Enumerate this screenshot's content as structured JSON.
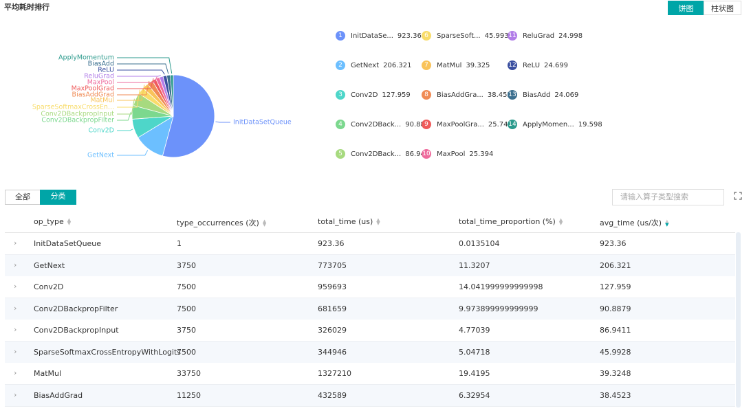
{
  "title": "平均耗时排行",
  "view_toggle": [
    "饼图",
    "柱状图"
  ],
  "pie": {
    "type": "pie",
    "slices": [
      {
        "rank": 1,
        "label": "InitDataSetQueue",
        "legend_label": "InitDataSe...",
        "value": 923.36,
        "value_label": "923.360",
        "color": "#6c92fa"
      },
      {
        "rank": 2,
        "label": "GetNext",
        "legend_label": "GetNext",
        "value": 206.321,
        "color": "#6cbfff"
      },
      {
        "rank": 3,
        "label": "Conv2D",
        "legend_label": "Conv2D",
        "value": 127.959,
        "color": "#4ed6c9"
      },
      {
        "rank": 4,
        "label": "Conv2DBackpropFilter",
        "legend_label": "Conv2DBack...",
        "value": 90.888,
        "color": "#7cd88e"
      },
      {
        "rank": 5,
        "label": "Conv2DBackpropInput",
        "legend_label": "Conv2DBack...",
        "value": 86.941,
        "color": "#a7da7f"
      },
      {
        "rank": 6,
        "label": "SparseSoftmaxCrossEn...",
        "legend_label": "SparseSoft...",
        "value": 45.993,
        "color": "#f8dc6a"
      },
      {
        "rank": 7,
        "label": "MatMul",
        "legend_label": "MatMul",
        "value": 39.325,
        "color": "#f9c35a"
      },
      {
        "rank": 8,
        "label": "BiasAddGrad",
        "legend_label": "BiasAddGra...",
        "value": 38.452,
        "color": "#f08b55"
      },
      {
        "rank": 9,
        "label": "MaxPoolGrad",
        "legend_label": "MaxPoolGra...",
        "value": 25.74,
        "value_label": "25.740",
        "color": "#ef5b5b"
      },
      {
        "rank": 10,
        "label": "MaxPool",
        "legend_label": "MaxPool",
        "value": 25.394,
        "color": "#ee6a9c"
      },
      {
        "rank": 11,
        "label": "ReluGrad",
        "legend_label": "ReluGrad",
        "value": 24.998,
        "color": "#b27ee8"
      },
      {
        "rank": 12,
        "label": "ReLU",
        "legend_label": "ReLU",
        "value": 24.699,
        "color": "#3a4fa0"
      },
      {
        "rank": 13,
        "label": "BiasAdd",
        "legend_label": "BiasAdd",
        "value": 24.069,
        "color": "#3b6f8f"
      },
      {
        "rank": 14,
        "label": "ApplyMomentum",
        "legend_label": "ApplyMomen...",
        "value": 19.598,
        "color": "#2b9a8c"
      }
    ]
  },
  "tabs": [
    "全部",
    "分类"
  ],
  "search_placeholder": "请输入算子类型搜索",
  "table": {
    "columns": [
      "op_type",
      "type_occurrences (次)",
      "total_time (us)",
      "total_time_proportion (%)",
      "avg_time (us/次)"
    ],
    "rows": [
      [
        "InitDataSetQueue",
        "1",
        "923.36",
        "0.0135104",
        "923.36"
      ],
      [
        "GetNext",
        "3750",
        "773705",
        "11.3207",
        "206.321"
      ],
      [
        "Conv2D",
        "7500",
        "959693",
        "14.041999999999998",
        "127.959"
      ],
      [
        "Conv2DBackpropFilter",
        "7500",
        "681659",
        "9.973899999999999",
        "90.8879"
      ],
      [
        "Conv2DBackpropInput",
        "3750",
        "326029",
        "4.77039",
        "86.9411"
      ],
      [
        "SparseSoftmaxCrossEntropyWithLogits",
        "7500",
        "344946",
        "5.04718",
        "45.9928"
      ],
      [
        "MatMul",
        "33750",
        "1327210",
        "19.4195",
        "39.3248"
      ],
      [
        "BiasAddGrad",
        "11250",
        "432589",
        "6.32954",
        "38.4523"
      ]
    ]
  }
}
